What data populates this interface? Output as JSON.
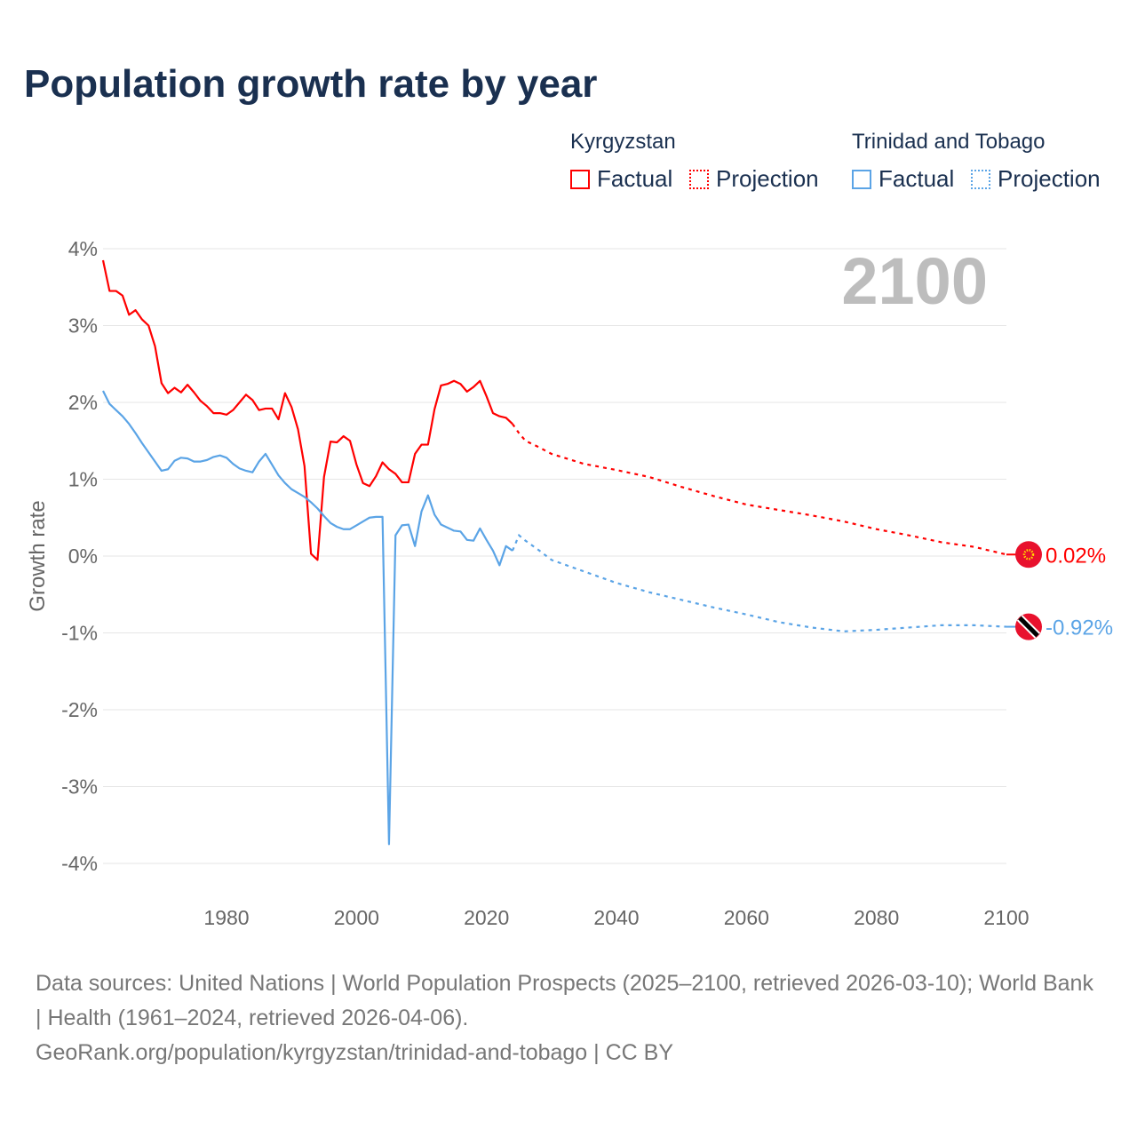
{
  "colors": {
    "kyrgyzstan": "#ff0000",
    "trinidad": "#5ba4e6",
    "grid": "#e6e6e6",
    "axis_text": "#666666",
    "year_watermark": "#bdbdbd"
  },
  "legend": {
    "groups": [
      {
        "name": "Kyrgyzstan",
        "factual": "Factual",
        "projection": "Projection"
      },
      {
        "name": "Trinidad and Tobago",
        "factual": "Factual",
        "projection": "Projection"
      }
    ]
  },
  "footer": {
    "sources": "Data sources: United Nations | World Population Prospects (2025–2100, retrieved 2026-03-10); World Bank | Health (1961–2024, retrieved 2026-04-06).",
    "link": "GeoRank.org/population/kyrgyzstan/trinidad-and-tobago | CC BY"
  },
  "chart_data": {
    "type": "line",
    "title": "Population growth rate by year",
    "ylabel": "Growth rate",
    "xlabel": "",
    "year_watermark": "2100",
    "xlim": [
      1961,
      2100
    ],
    "ylim": [
      -4,
      4
    ],
    "xticks": [
      1980,
      2000,
      2020,
      2040,
      2060,
      2080,
      2100
    ],
    "yticks": [
      4,
      3,
      2,
      1,
      0,
      -1,
      -2,
      -3,
      -4
    ],
    "ytick_labels": [
      "4%",
      "3%",
      "2%",
      "1%",
      "0%",
      "-1%",
      "-2%",
      "-3%",
      "-4%"
    ],
    "xtick_labels": [
      "1980",
      "2000",
      "2020",
      "2040",
      "2060",
      "2080",
      "2100"
    ],
    "grid": true,
    "legend_position": "top-right",
    "series": [
      {
        "name": "Kyrgyzstan",
        "end_label": "0.02%",
        "factual": {
          "x": [
            1961,
            1962,
            1963,
            1964,
            1965,
            1966,
            1967,
            1968,
            1969,
            1970,
            1971,
            1972,
            1973,
            1974,
            1975,
            1976,
            1977,
            1978,
            1979,
            1980,
            1981,
            1982,
            1983,
            1984,
            1985,
            1986,
            1987,
            1988,
            1989,
            1990,
            1991,
            1992,
            1993,
            1994,
            1995,
            1996,
            1997,
            1998,
            1999,
            2000,
            2001,
            2002,
            2003,
            2004,
            2005,
            2006,
            2007,
            2008,
            2009,
            2010,
            2011,
            2012,
            2013,
            2014,
            2015,
            2016,
            2017,
            2018,
            2019,
            2020,
            2021,
            2022,
            2023,
            2024
          ],
          "y": [
            3.85,
            3.45,
            3.45,
            3.39,
            3.14,
            3.2,
            3.08,
            3.0,
            2.73,
            2.25,
            2.12,
            2.19,
            2.13,
            2.23,
            2.13,
            2.02,
            1.95,
            1.86,
            1.86,
            1.84,
            1.9,
            2.0,
            2.1,
            2.03,
            1.9,
            1.92,
            1.92,
            1.78,
            2.12,
            1.94,
            1.65,
            1.17,
            0.03,
            -0.05,
            1.03,
            1.49,
            1.48,
            1.56,
            1.5,
            1.19,
            0.95,
            0.91,
            1.04,
            1.22,
            1.13,
            1.07,
            0.96,
            0.96,
            1.33,
            1.45,
            1.45,
            1.91,
            2.22,
            2.24,
            2.28,
            2.24,
            2.14,
            2.2,
            2.28,
            2.08,
            1.86,
            1.82,
            1.8,
            1.72
          ]
        },
        "projection": {
          "x": [
            2024,
            2025,
            2026,
            2028,
            2030,
            2035,
            2040,
            2045,
            2050,
            2055,
            2060,
            2065,
            2070,
            2075,
            2080,
            2085,
            2090,
            2095,
            2100
          ],
          "y": [
            1.72,
            1.6,
            1.5,
            1.42,
            1.33,
            1.2,
            1.12,
            1.03,
            0.9,
            0.78,
            0.67,
            0.6,
            0.53,
            0.45,
            0.35,
            0.27,
            0.18,
            0.12,
            0.02
          ]
        }
      },
      {
        "name": "Trinidad and Tobago",
        "end_label": "-0.92%",
        "factual": {
          "x": [
            1961,
            1962,
            1963,
            1964,
            1965,
            1966,
            1967,
            1968,
            1969,
            1970,
            1971,
            1972,
            1973,
            1974,
            1975,
            1976,
            1977,
            1978,
            1979,
            1980,
            1981,
            1982,
            1983,
            1984,
            1985,
            1986,
            1987,
            1988,
            1989,
            1990,
            1991,
            1992,
            1993,
            1994,
            1995,
            1996,
            1997,
            1998,
            1999,
            2000,
            2001,
            2002,
            2003,
            2004,
            2005,
            2006,
            2007,
            2008,
            2009,
            2010,
            2011,
            2012,
            2013,
            2014,
            2015,
            2016,
            2017,
            2018,
            2019,
            2020,
            2021,
            2022,
            2023,
            2024
          ],
          "y": [
            2.15,
            1.98,
            1.9,
            1.82,
            1.72,
            1.6,
            1.47,
            1.35,
            1.23,
            1.11,
            1.13,
            1.24,
            1.28,
            1.27,
            1.23,
            1.23,
            1.25,
            1.29,
            1.31,
            1.28,
            1.2,
            1.14,
            1.11,
            1.09,
            1.23,
            1.33,
            1.19,
            1.05,
            0.95,
            0.87,
            0.82,
            0.77,
            0.7,
            0.62,
            0.52,
            0.43,
            0.38,
            0.35,
            0.35,
            0.4,
            0.45,
            0.5,
            0.51,
            0.51,
            -3.75,
            0.27,
            0.4,
            0.41,
            0.13,
            0.58,
            0.79,
            0.54,
            0.41,
            0.37,
            0.33,
            0.32,
            0.21,
            0.2,
            0.36,
            0.21,
            0.07,
            -0.12,
            0.13,
            0.07
          ]
        },
        "projection": {
          "x": [
            2024,
            2025,
            2026,
            2028,
            2030,
            2035,
            2040,
            2045,
            2050,
            2055,
            2060,
            2065,
            2070,
            2075,
            2080,
            2085,
            2090,
            2095,
            2100
          ],
          "y": [
            0.07,
            0.27,
            0.2,
            0.08,
            -0.05,
            -0.2,
            -0.35,
            -0.47,
            -0.57,
            -0.67,
            -0.76,
            -0.86,
            -0.93,
            -0.98,
            -0.96,
            -0.93,
            -0.9,
            -0.9,
            -0.92
          ]
        }
      }
    ]
  }
}
